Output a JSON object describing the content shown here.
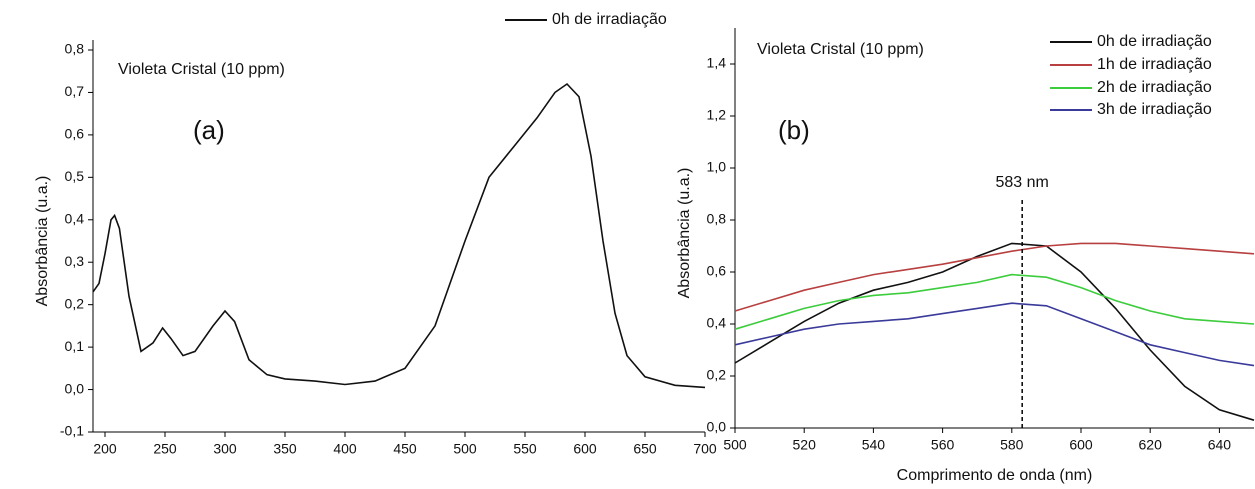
{
  "chart_data": [
    {
      "type": "line",
      "y_label": "Absorbância (u.a.)",
      "annotations": [
        "Violeta Cristal (10 ppm)",
        "(a)"
      ],
      "x": [
        190,
        195,
        200,
        205,
        208,
        212,
        220,
        230,
        240,
        248,
        255,
        265,
        275,
        290,
        300,
        308,
        320,
        335,
        350,
        375,
        400,
        425,
        450,
        475,
        500,
        520,
        540,
        560,
        575,
        585,
        595,
        605,
        615,
        625,
        635,
        650,
        675,
        700
      ],
      "series": [
        {
          "name": "0h de irradiação",
          "color": "#111111",
          "values": [
            0.23,
            0.25,
            0.32,
            0.4,
            0.41,
            0.38,
            0.22,
            0.09,
            0.11,
            0.145,
            0.12,
            0.08,
            0.09,
            0.15,
            0.185,
            0.16,
            0.07,
            0.035,
            0.025,
            0.02,
            0.012,
            0.02,
            0.05,
            0.15,
            0.35,
            0.5,
            0.57,
            0.64,
            0.7,
            0.72,
            0.69,
            0.55,
            0.35,
            0.18,
            0.08,
            0.03,
            0.01,
            0.005
          ]
        }
      ],
      "xlim": [
        190,
        700
      ],
      "xticks": [
        200,
        250,
        300,
        350,
        400,
        450,
        500,
        550,
        600,
        650,
        700
      ],
      "ylim": [
        -0.1,
        0.8
      ],
      "yticks": [
        {
          "value": -0.1,
          "label": "-0,1"
        },
        {
          "value": 0,
          "label": "0,0"
        },
        {
          "value": 0.1,
          "label": "0,1"
        },
        {
          "value": 0.2,
          "label": "0,2"
        },
        {
          "value": 0.3,
          "label": "0,3"
        },
        {
          "value": 0.4,
          "label": "0,4"
        },
        {
          "value": 0.5,
          "label": "0,5"
        },
        {
          "value": 0.6,
          "label": "0,6"
        },
        {
          "value": 0.7,
          "label": "0,7"
        },
        {
          "value": 0.8,
          "label": "0,8"
        }
      ]
    },
    {
      "type": "line",
      "x_label": "Comprimento de onda (nm)",
      "y_label": "Absorbância (u.a.)",
      "annotations": [
        "Violeta Cristal (10 ppm)",
        "(b)"
      ],
      "marker_line": {
        "x": 583,
        "label": "583 nm"
      },
      "x": [
        500,
        510,
        520,
        530,
        540,
        550,
        560,
        570,
        580,
        590,
        600,
        610,
        620,
        630,
        640,
        650
      ],
      "series": [
        {
          "name": "0h de irradiação",
          "color": "#111111",
          "values": [
            0.25,
            0.33,
            0.41,
            0.48,
            0.53,
            0.56,
            0.6,
            0.66,
            0.71,
            0.7,
            0.6,
            0.46,
            0.3,
            0.16,
            0.07,
            0.03
          ]
        },
        {
          "name": "1h de irradiação",
          "color": "#b84040",
          "values": [
            0.45,
            0.49,
            0.53,
            0.56,
            0.59,
            0.61,
            0.63,
            0.655,
            0.68,
            0.7,
            0.71,
            0.71,
            0.7,
            0.69,
            0.68,
            0.67
          ]
        },
        {
          "name": "2h de irradiação",
          "color": "#3ccc3c",
          "values": [
            0.38,
            0.42,
            0.46,
            0.49,
            0.51,
            0.52,
            0.54,
            0.56,
            0.59,
            0.58,
            0.54,
            0.49,
            0.45,
            0.42,
            0.41,
            0.4
          ]
        },
        {
          "name": "3h de irradiação",
          "color": "#3a3a9a",
          "values": [
            0.32,
            0.35,
            0.38,
            0.4,
            0.41,
            0.42,
            0.44,
            0.46,
            0.48,
            0.47,
            0.42,
            0.37,
            0.32,
            0.29,
            0.26,
            0.24
          ]
        }
      ],
      "xlim": [
        500,
        650
      ],
      "xticks": [
        500,
        520,
        540,
        560,
        580,
        600,
        620,
        640
      ],
      "ylim": [
        0,
        1.5
      ],
      "yticks": [
        {
          "value": 0,
          "label": "0,0"
        },
        {
          "value": 0.2,
          "label": "0,2"
        },
        {
          "value": 0.4,
          "label": "0,4"
        },
        {
          "value": 0.6,
          "label": "0,6"
        },
        {
          "value": 0.8,
          "label": "0,8"
        },
        {
          "value": 1.0,
          "label": "1,0"
        },
        {
          "value": 1.2,
          "label": "1,2"
        },
        {
          "value": 1.4,
          "label": "1,4"
        }
      ]
    }
  ]
}
